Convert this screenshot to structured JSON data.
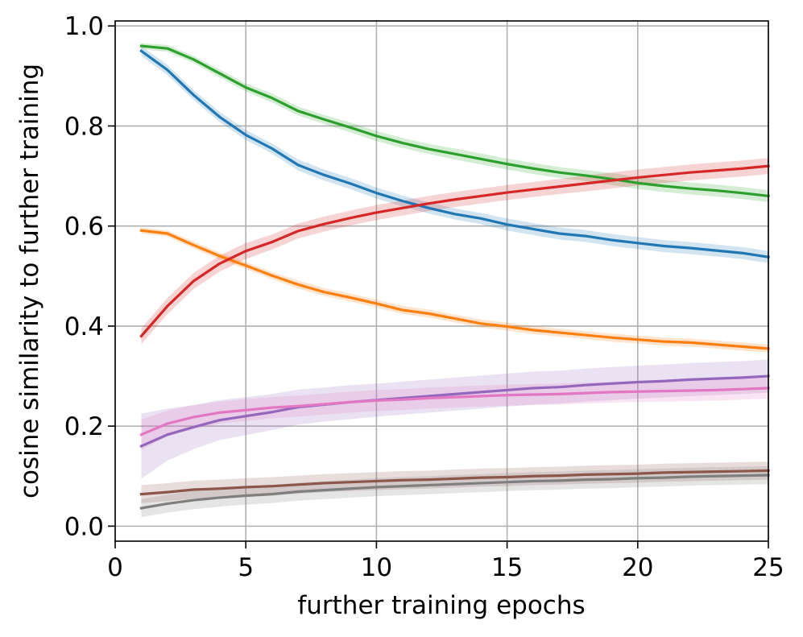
{
  "chart_data": {
    "type": "line",
    "title": "",
    "xlabel": "further training epochs",
    "ylabel": "cosine similarity to further training",
    "xlim": [
      0,
      25
    ],
    "ylim": [
      -0.03,
      1.01
    ],
    "xticks": [
      0,
      5,
      10,
      15,
      20,
      25
    ],
    "xtick_labels": [
      "0",
      "5",
      "10",
      "15",
      "20",
      "25"
    ],
    "yticks": [
      0.0,
      0.2,
      0.4,
      0.6,
      0.8,
      1.0
    ],
    "ytick_labels": [
      "0.0",
      "0.2",
      "0.4",
      "0.6",
      "0.8",
      "1.0"
    ],
    "grid": true,
    "legend": "none",
    "x": [
      1,
      2,
      3,
      4,
      5,
      6,
      7,
      8,
      9,
      10,
      11,
      12,
      13,
      14,
      15,
      16,
      17,
      18,
      19,
      20,
      21,
      22,
      23,
      24,
      25
    ],
    "series": [
      {
        "color": "#1f77b4",
        "values": [
          0.95,
          0.912,
          0.862,
          0.818,
          0.782,
          0.755,
          0.722,
          0.702,
          0.685,
          0.666,
          0.65,
          0.636,
          0.624,
          0.615,
          0.603,
          0.594,
          0.585,
          0.58,
          0.572,
          0.566,
          0.56,
          0.556,
          0.551,
          0.546,
          0.538
        ],
        "band": [
          0.01,
          0.01,
          0.01,
          0.01,
          0.01,
          0.01,
          0.011,
          0.011,
          0.011,
          0.011,
          0.011,
          0.011,
          0.011,
          0.011,
          0.012,
          0.012,
          0.012,
          0.012,
          0.012,
          0.012,
          0.012,
          0.012,
          0.012,
          0.012,
          0.012
        ]
      },
      {
        "color": "#ff7f0e",
        "values": [
          0.591,
          0.585,
          0.562,
          0.54,
          0.521,
          0.501,
          0.483,
          0.468,
          0.457,
          0.445,
          0.432,
          0.425,
          0.415,
          0.405,
          0.399,
          0.392,
          0.387,
          0.382,
          0.377,
          0.373,
          0.369,
          0.367,
          0.363,
          0.359,
          0.355
        ],
        "band": [
          0.006,
          0.006,
          0.007,
          0.007,
          0.007,
          0.007,
          0.008,
          0.008,
          0.008,
          0.008,
          0.008,
          0.008,
          0.008,
          0.008,
          0.008,
          0.008,
          0.008,
          0.008,
          0.008,
          0.008,
          0.008,
          0.008,
          0.008,
          0.008,
          0.008
        ]
      },
      {
        "color": "#2ca02c",
        "values": [
          0.96,
          0.955,
          0.933,
          0.905,
          0.877,
          0.856,
          0.83,
          0.813,
          0.797,
          0.78,
          0.766,
          0.754,
          0.744,
          0.734,
          0.724,
          0.715,
          0.707,
          0.701,
          0.694,
          0.686,
          0.68,
          0.675,
          0.671,
          0.666,
          0.66
        ],
        "band": [
          0.006,
          0.007,
          0.007,
          0.008,
          0.008,
          0.009,
          0.009,
          0.009,
          0.01,
          0.01,
          0.01,
          0.01,
          0.011,
          0.011,
          0.011,
          0.011,
          0.011,
          0.011,
          0.012,
          0.012,
          0.012,
          0.012,
          0.012,
          0.012,
          0.012
        ]
      },
      {
        "color": "#d62728",
        "values": [
          0.38,
          0.44,
          0.49,
          0.525,
          0.55,
          0.568,
          0.59,
          0.604,
          0.616,
          0.627,
          0.636,
          0.645,
          0.653,
          0.66,
          0.667,
          0.673,
          0.679,
          0.685,
          0.691,
          0.697,
          0.702,
          0.707,
          0.711,
          0.715,
          0.72
        ],
        "band": [
          0.016,
          0.016,
          0.016,
          0.016,
          0.016,
          0.015,
          0.015,
          0.015,
          0.015,
          0.015,
          0.015,
          0.015,
          0.015,
          0.015,
          0.015,
          0.015,
          0.015,
          0.016,
          0.016,
          0.016,
          0.016,
          0.016,
          0.016,
          0.016,
          0.016
        ]
      },
      {
        "color": "#9467bd",
        "values": [
          0.16,
          0.183,
          0.198,
          0.212,
          0.22,
          0.228,
          0.238,
          0.243,
          0.248,
          0.252,
          0.256,
          0.26,
          0.264,
          0.268,
          0.272,
          0.276,
          0.278,
          0.282,
          0.285,
          0.288,
          0.29,
          0.293,
          0.295,
          0.297,
          0.3
        ],
        "band": [
          0.065,
          0.052,
          0.044,
          0.04,
          0.038,
          0.036,
          0.035,
          0.034,
          0.034,
          0.033,
          0.033,
          0.033,
          0.033,
          0.033,
          0.033,
          0.033,
          0.033,
          0.033,
          0.033,
          0.033,
          0.033,
          0.033,
          0.033,
          0.033,
          0.033
        ]
      },
      {
        "color": "#e377c2",
        "values": [
          0.183,
          0.205,
          0.218,
          0.227,
          0.232,
          0.237,
          0.24,
          0.244,
          0.248,
          0.251,
          0.253,
          0.256,
          0.258,
          0.26,
          0.262,
          0.263,
          0.264,
          0.266,
          0.268,
          0.269,
          0.27,
          0.271,
          0.272,
          0.274,
          0.276
        ],
        "band": [
          0.03,
          0.026,
          0.024,
          0.022,
          0.022,
          0.021,
          0.021,
          0.021,
          0.021,
          0.021,
          0.021,
          0.021,
          0.021,
          0.021,
          0.021,
          0.021,
          0.021,
          0.021,
          0.021,
          0.021,
          0.021,
          0.021,
          0.021,
          0.021,
          0.021
        ]
      },
      {
        "color": "#8c564b",
        "values": [
          0.064,
          0.068,
          0.073,
          0.075,
          0.078,
          0.08,
          0.083,
          0.086,
          0.088,
          0.09,
          0.092,
          0.093,
          0.095,
          0.097,
          0.098,
          0.1,
          0.101,
          0.103,
          0.104,
          0.105,
          0.107,
          0.108,
          0.109,
          0.11,
          0.111
        ],
        "band": [
          0.018,
          0.018,
          0.018,
          0.018,
          0.018,
          0.018,
          0.018,
          0.018,
          0.018,
          0.018,
          0.018,
          0.018,
          0.018,
          0.018,
          0.018,
          0.018,
          0.018,
          0.018,
          0.018,
          0.018,
          0.018,
          0.018,
          0.018,
          0.018,
          0.018
        ]
      },
      {
        "color": "#7f7f7f",
        "values": [
          0.036,
          0.045,
          0.052,
          0.057,
          0.061,
          0.064,
          0.069,
          0.072,
          0.075,
          0.078,
          0.08,
          0.082,
          0.084,
          0.086,
          0.088,
          0.09,
          0.091,
          0.093,
          0.094,
          0.096,
          0.097,
          0.099,
          0.1,
          0.101,
          0.102
        ],
        "band": [
          0.018,
          0.018,
          0.018,
          0.018,
          0.018,
          0.018,
          0.018,
          0.018,
          0.018,
          0.018,
          0.018,
          0.018,
          0.018,
          0.018,
          0.018,
          0.018,
          0.018,
          0.018,
          0.018,
          0.018,
          0.018,
          0.018,
          0.018,
          0.018,
          0.018
        ]
      }
    ]
  }
}
